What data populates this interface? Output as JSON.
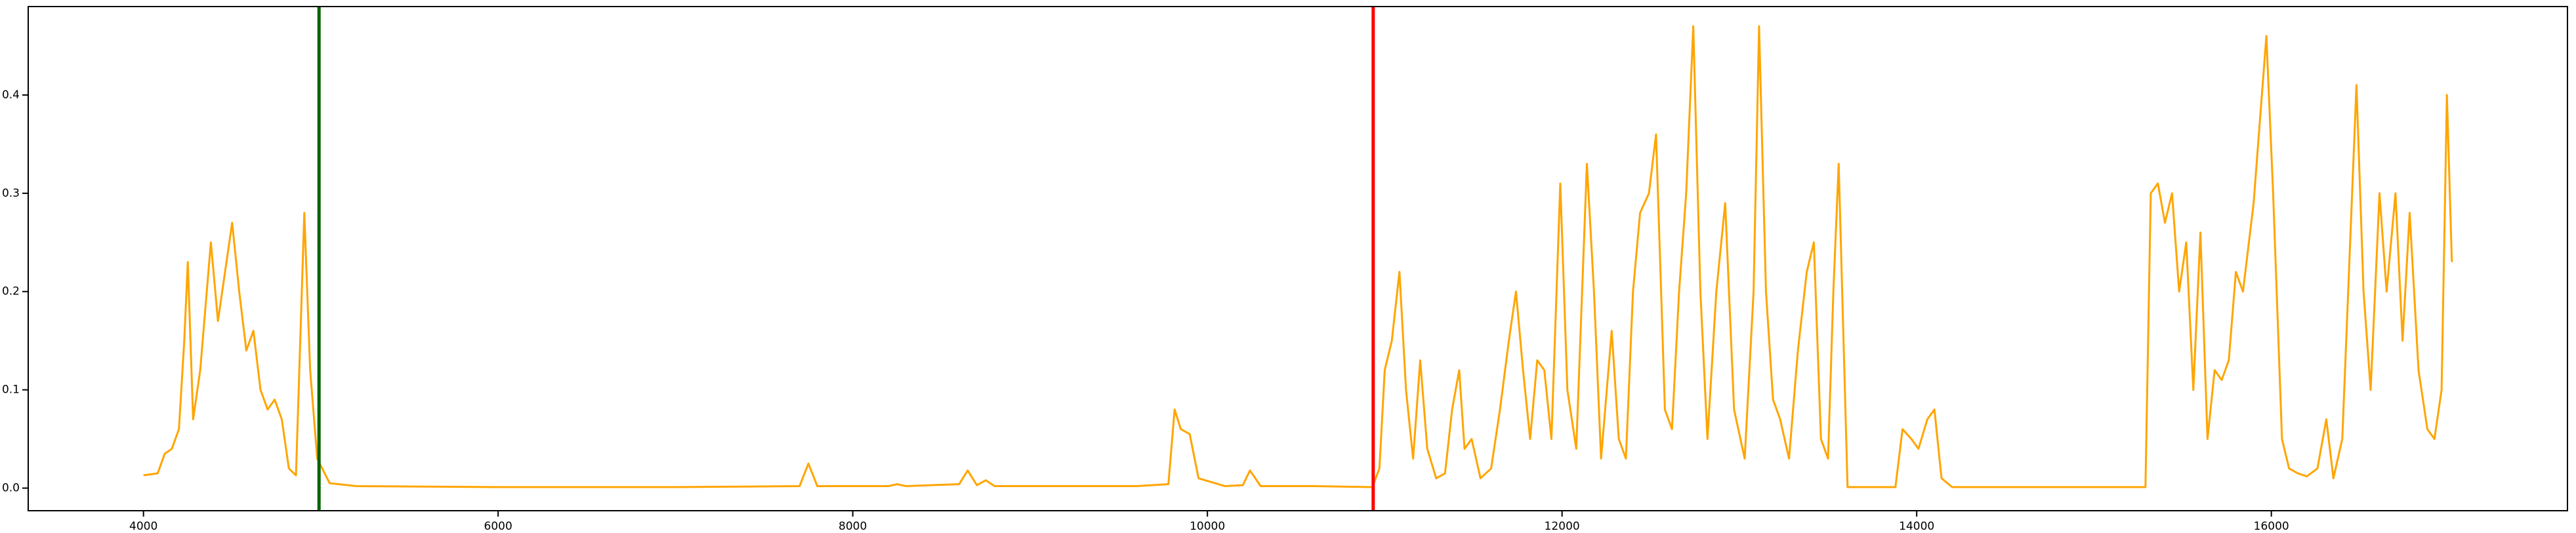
{
  "chart_data": {
    "type": "line",
    "x": [
      4000,
      4080,
      4120,
      4160,
      4200,
      4230,
      4250,
      4280,
      4320,
      4380,
      4420,
      4460,
      4500,
      4540,
      4580,
      4620,
      4660,
      4700,
      4740,
      4780,
      4820,
      4860,
      4907,
      4940,
      4980,
      5050,
      5200,
      6000,
      7000,
      7700,
      7750,
      7800,
      8200,
      8250,
      8300,
      8600,
      8648,
      8700,
      8750,
      8800,
      9600,
      9780,
      9815,
      9850,
      9900,
      9950,
      10100,
      10200,
      10240,
      10300,
      10600,
      10930,
      10970,
      11000,
      11040,
      11083,
      11120,
      11160,
      11200,
      11240,
      11290,
      11340,
      11380,
      11420,
      11450,
      11490,
      11540,
      11600,
      11650,
      11700,
      11740,
      11780,
      11820,
      11860,
      11900,
      11940,
      11990,
      12030,
      12080,
      12140,
      12180,
      12220,
      12280,
      12320,
      12360,
      12400,
      12440,
      12490,
      12530,
      12580,
      12620,
      12660,
      12700,
      12740,
      12780,
      12820,
      12870,
      12920,
      12970,
      13030,
      13080,
      13111,
      13150,
      13190,
      13230,
      13280,
      13330,
      13380,
      13420,
      13460,
      13500,
      13530,
      13560,
      13610,
      13880,
      13920,
      13970,
      14010,
      14060,
      14100,
      14140,
      14200,
      15290,
      15320,
      15360,
      15400,
      15440,
      15480,
      15520,
      15560,
      15600,
      15640,
      15680,
      15720,
      15760,
      15800,
      15840,
      15900,
      15972,
      16010,
      16060,
      16100,
      16150,
      16200,
      16260,
      16310,
      16350,
      16400,
      16480,
      16520,
      16560,
      16610,
      16650,
      16700,
      16740,
      16780,
      16830,
      16880,
      16920,
      16960,
      16990,
      17018
    ],
    "series": [
      {
        "color": "#ffa500",
        "values": [
          0.013,
          0.015,
          0.035,
          0.04,
          0.06,
          0.15,
          0.23,
          0.07,
          0.12,
          0.25,
          0.17,
          0.22,
          0.27,
          0.2,
          0.14,
          0.16,
          0.1,
          0.08,
          0.09,
          0.07,
          0.02,
          0.013,
          0.28,
          0.12,
          0.03,
          0.005,
          0.002,
          0.001,
          0.001,
          0.002,
          0.025,
          0.002,
          0.002,
          0.004,
          0.002,
          0.004,
          0.018,
          0.003,
          0.008,
          0.002,
          0.002,
          0.004,
          0.08,
          0.06,
          0.055,
          0.01,
          0.002,
          0.003,
          0.018,
          0.002,
          0.002,
          0.001,
          0.02,
          0.12,
          0.15,
          0.22,
          0.1,
          0.03,
          0.13,
          0.04,
          0.01,
          0.015,
          0.08,
          0.12,
          0.04,
          0.05,
          0.01,
          0.02,
          0.08,
          0.15,
          0.2,
          0.12,
          0.05,
          0.13,
          0.12,
          0.05,
          0.31,
          0.1,
          0.04,
          0.33,
          0.2,
          0.03,
          0.16,
          0.05,
          0.03,
          0.2,
          0.28,
          0.3,
          0.36,
          0.08,
          0.06,
          0.2,
          0.3,
          0.47,
          0.2,
          0.05,
          0.2,
          0.29,
          0.08,
          0.03,
          0.2,
          0.47,
          0.2,
          0.09,
          0.07,
          0.03,
          0.14,
          0.22,
          0.25,
          0.05,
          0.03,
          0.2,
          0.33,
          0.001,
          0.001,
          0.06,
          0.05,
          0.04,
          0.07,
          0.08,
          0.01,
          0.001,
          0.001,
          0.3,
          0.31,
          0.27,
          0.3,
          0.2,
          0.25,
          0.1,
          0.26,
          0.05,
          0.12,
          0.11,
          0.13,
          0.22,
          0.2,
          0.29,
          0.46,
          0.3,
          0.05,
          0.02,
          0.015,
          0.012,
          0.02,
          0.07,
          0.01,
          0.05,
          0.41,
          0.2,
          0.1,
          0.3,
          0.2,
          0.3,
          0.15,
          0.28,
          0.12,
          0.06,
          0.05,
          0.1,
          0.4,
          0.23
        ]
      }
    ],
    "vlines": [
      {
        "x": 4990,
        "color": "#006400"
      },
      {
        "x": 10935,
        "color": "#ff0000"
      }
    ],
    "xlim": [
      3350,
      17670
    ],
    "ylim": [
      -0.023,
      0.49
    ],
    "xticks": [
      4000,
      6000,
      8000,
      10000,
      12000,
      14000,
      16000
    ],
    "yticks": [
      {
        "value": 0,
        "label": "0.0"
      },
      0.1,
      0.2,
      0.3,
      0.4
    ]
  }
}
